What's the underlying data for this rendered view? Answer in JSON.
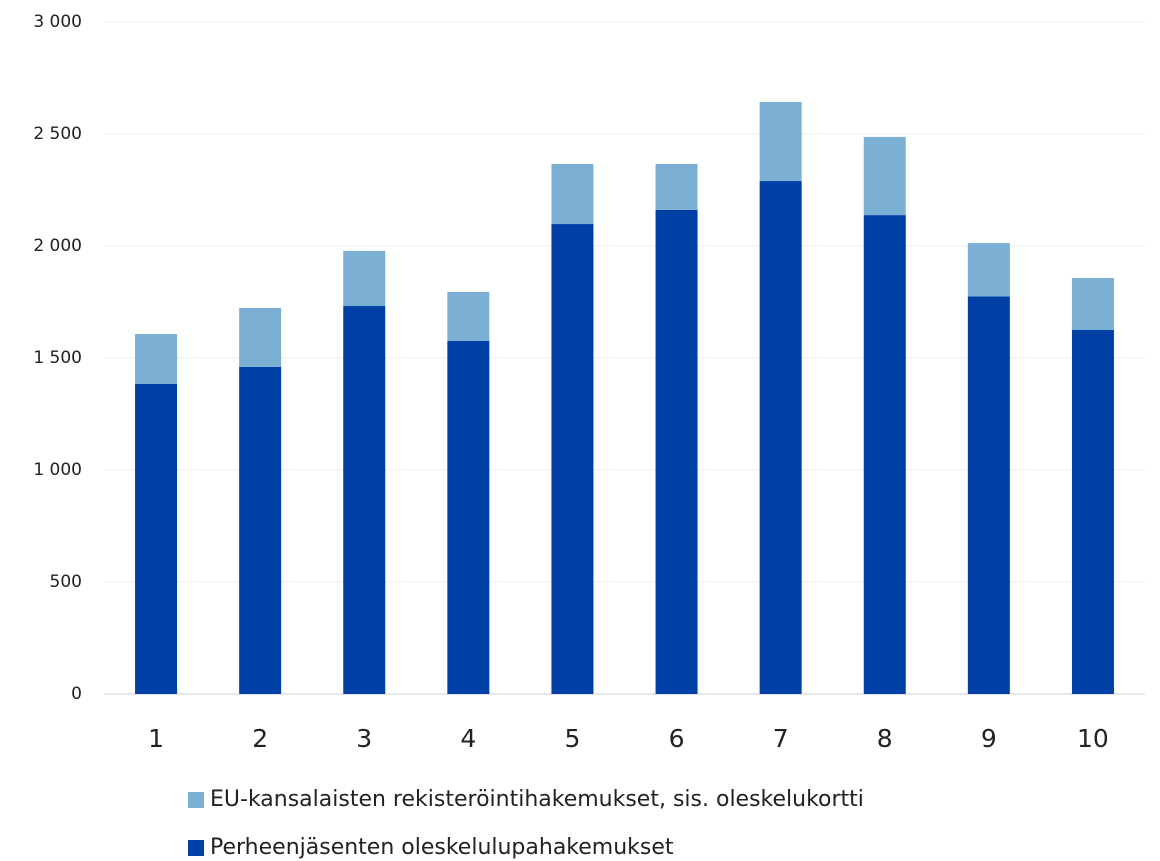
{
  "chart_data": {
    "type": "stacked_bar",
    "categories": [
      "1",
      "2",
      "3",
      "4",
      "5",
      "6",
      "7",
      "8",
      "9",
      "10"
    ],
    "series": [
      {
        "name": "Perheenjäsenten oleskelulupahakemukset",
        "color": "#003fa5",
        "values": [
          1384,
          1460,
          1732,
          1576,
          2098,
          2161,
          2290,
          2138,
          1775,
          1625
        ]
      },
      {
        "name": "EU-kansalaisten rekisteröintihakemukset, sis. oleskelukortti",
        "color": "#7bafd4",
        "values": [
          223,
          263,
          246,
          219,
          268,
          205,
          353,
          349,
          238,
          232
        ]
      }
    ],
    "ylim": [
      0,
      3000
    ],
    "yticks": [
      0,
      500,
      {
        "value": 1000,
        "label": "1 000"
      },
      {
        "value": 1500,
        "label": "1 500"
      },
      {
        "value": 2000,
        "label": "2 000"
      },
      {
        "value": 2500,
        "label": "2 500"
      },
      {
        "value": 3000,
        "label": "3 000"
      }
    ],
    "grid": true
  }
}
